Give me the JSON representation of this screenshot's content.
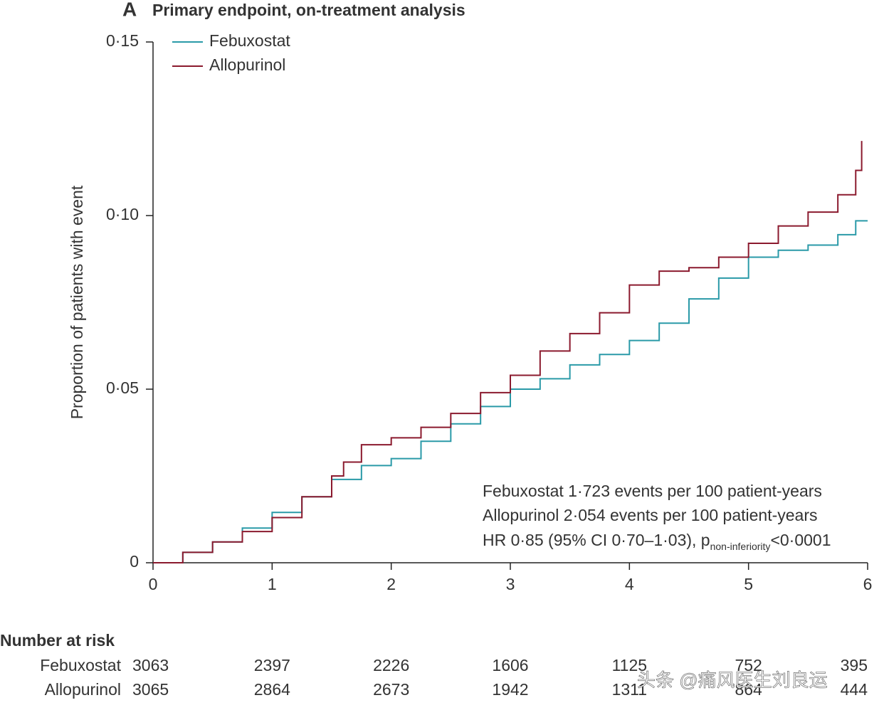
{
  "chart_data": {
    "type": "step",
    "panel_label": "A",
    "title": "Primary endpoint, on-treatment analysis",
    "y_label": "Proportion of patients with event",
    "xlim": [
      0,
      6
    ],
    "ylim": [
      0,
      0.15
    ],
    "xticks": [
      0,
      1,
      2,
      3,
      4,
      5,
      6
    ],
    "yticks": [
      {
        "value": 0,
        "label": "0"
      },
      {
        "value": 0.05,
        "label": "0·05"
      },
      {
        "value": 0.1,
        "label": "0·10"
      },
      {
        "value": 0.15,
        "label": "0·15"
      }
    ],
    "legend": "top-left",
    "series": [
      {
        "name": "Febuxostat",
        "color": "#2a9aa8",
        "x": [
          0,
          0.25,
          0.5,
          0.75,
          1.0,
          1.25,
          1.5,
          1.75,
          2.0,
          2.25,
          2.5,
          2.75,
          3.0,
          3.25,
          3.5,
          3.75,
          4.0,
          4.25,
          4.5,
          4.75,
          5.0,
          5.25,
          5.5,
          5.75,
          5.9,
          6.0
        ],
        "values": [
          0,
          0.003,
          0.006,
          0.01,
          0.0145,
          0.019,
          0.024,
          0.028,
          0.03,
          0.035,
          0.04,
          0.045,
          0.05,
          0.053,
          0.057,
          0.06,
          0.064,
          0.069,
          0.076,
          0.082,
          0.088,
          0.09,
          0.0915,
          0.0945,
          0.0985,
          0.0985
        ]
      },
      {
        "name": "Allopurinol",
        "color": "#8b1a2e",
        "x": [
          0,
          0.25,
          0.5,
          0.75,
          1.0,
          1.25,
          1.5,
          1.6,
          1.75,
          2.0,
          2.25,
          2.5,
          2.75,
          3.0,
          3.25,
          3.5,
          3.75,
          4.0,
          4.25,
          4.5,
          4.75,
          5.0,
          5.25,
          5.5,
          5.75,
          5.9,
          5.95
        ],
        "values": [
          0,
          0.003,
          0.006,
          0.009,
          0.013,
          0.019,
          0.025,
          0.029,
          0.034,
          0.036,
          0.039,
          0.043,
          0.049,
          0.054,
          0.061,
          0.066,
          0.072,
          0.08,
          0.084,
          0.085,
          0.088,
          0.092,
          0.097,
          0.101,
          0.106,
          0.113,
          0.1215
        ]
      }
    ],
    "annotations": [
      "Febuxostat 1·723 events per 100 patient-years",
      "Allopurinol 2·054 events per 100 patient-years"
    ],
    "hr_annotation": {
      "text": "HR 0·85 (95% CI 0·70–1·03), p",
      "subscript": "non-inferiority",
      "suffix": "<0·0001"
    },
    "risk_table": {
      "title": "Number at risk",
      "rows": [
        {
          "name": "Febuxostat",
          "counts": [
            3063,
            2397,
            2226,
            1606,
            1125,
            752,
            395
          ]
        },
        {
          "name": "Allopurinol",
          "counts": [
            3065,
            2864,
            2673,
            1942,
            1311,
            864,
            444
          ]
        }
      ]
    },
    "watermark": "头条 @痛风医生刘良运"
  }
}
